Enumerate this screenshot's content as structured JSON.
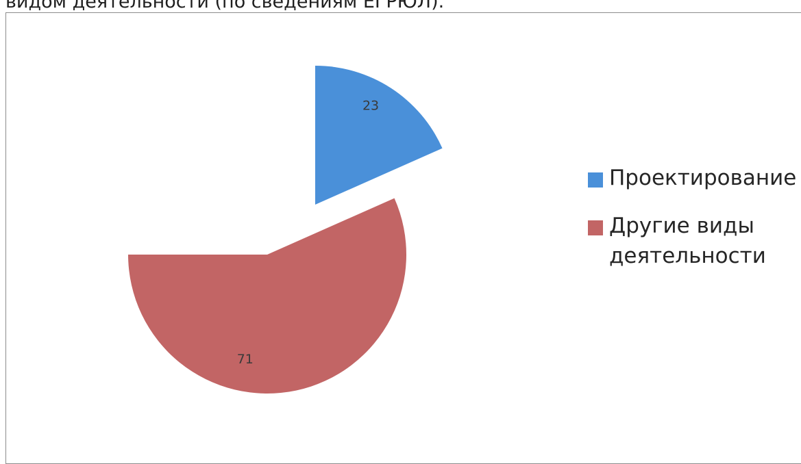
{
  "heading_fragment": "видом деятельности (по сведениям ЕГРЮЛ).",
  "chart_data": {
    "type": "pie",
    "title": "",
    "exploded": true,
    "slices": [
      {
        "name": "Проектирование",
        "value": 23,
        "color": "#4a90d9"
      },
      {
        "name": "Другие виды деятельности",
        "value": 71,
        "color": "#c26565"
      }
    ],
    "legend_position": "right",
    "data_labels": [
      "23",
      "71"
    ]
  },
  "legend": {
    "items": [
      {
        "label": "Проектирование",
        "color": "#4a90d9"
      },
      {
        "label": "Другие виды\nдеятельности",
        "color": "#c26565"
      }
    ]
  }
}
